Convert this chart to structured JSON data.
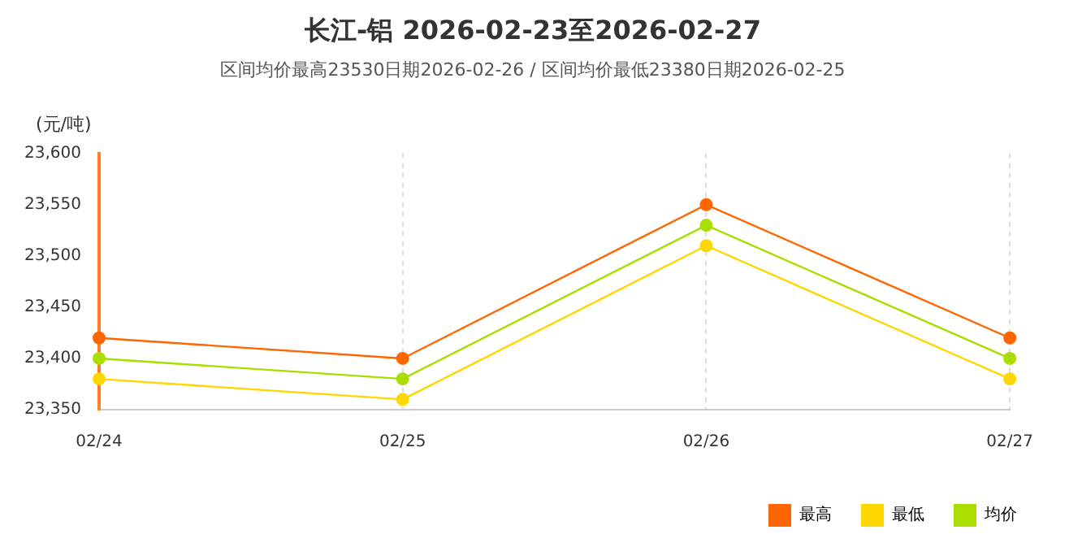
{
  "chart_data": {
    "type": "line",
    "title": "长江-铝 2026-02-23至2026-02-27",
    "subtitle": "区间均价最高23530日期2026-02-26 / 区间均价最低23380日期2026-02-25",
    "ylabel": "(元/吨)",
    "categories": [
      "02/24",
      "02/25",
      "02/26",
      "02/27"
    ],
    "series": [
      {
        "name": "最高",
        "color": "#ff6600",
        "values": [
          23420,
          23400,
          23550,
          23420
        ]
      },
      {
        "name": "最低",
        "color": "#ffd700",
        "values": [
          23380,
          23360,
          23510,
          23380
        ]
      },
      {
        "name": "均价",
        "color": "#aadd00",
        "values": [
          23400,
          23380,
          23530,
          23400
        ]
      }
    ],
    "ylim": [
      23350,
      23600
    ],
    "yticks": [
      {
        "value": 23350,
        "label": "23,350"
      },
      {
        "value": 23400,
        "label": "23,400"
      },
      {
        "value": 23450,
        "label": "23,450"
      },
      {
        "value": 23500,
        "label": "23,500"
      },
      {
        "value": 23550,
        "label": "23,550"
      },
      {
        "value": 23600,
        "label": "23,600"
      }
    ],
    "grid": "x",
    "legend": "bottom right",
    "marker": "circle",
    "line_style": "solid"
  }
}
